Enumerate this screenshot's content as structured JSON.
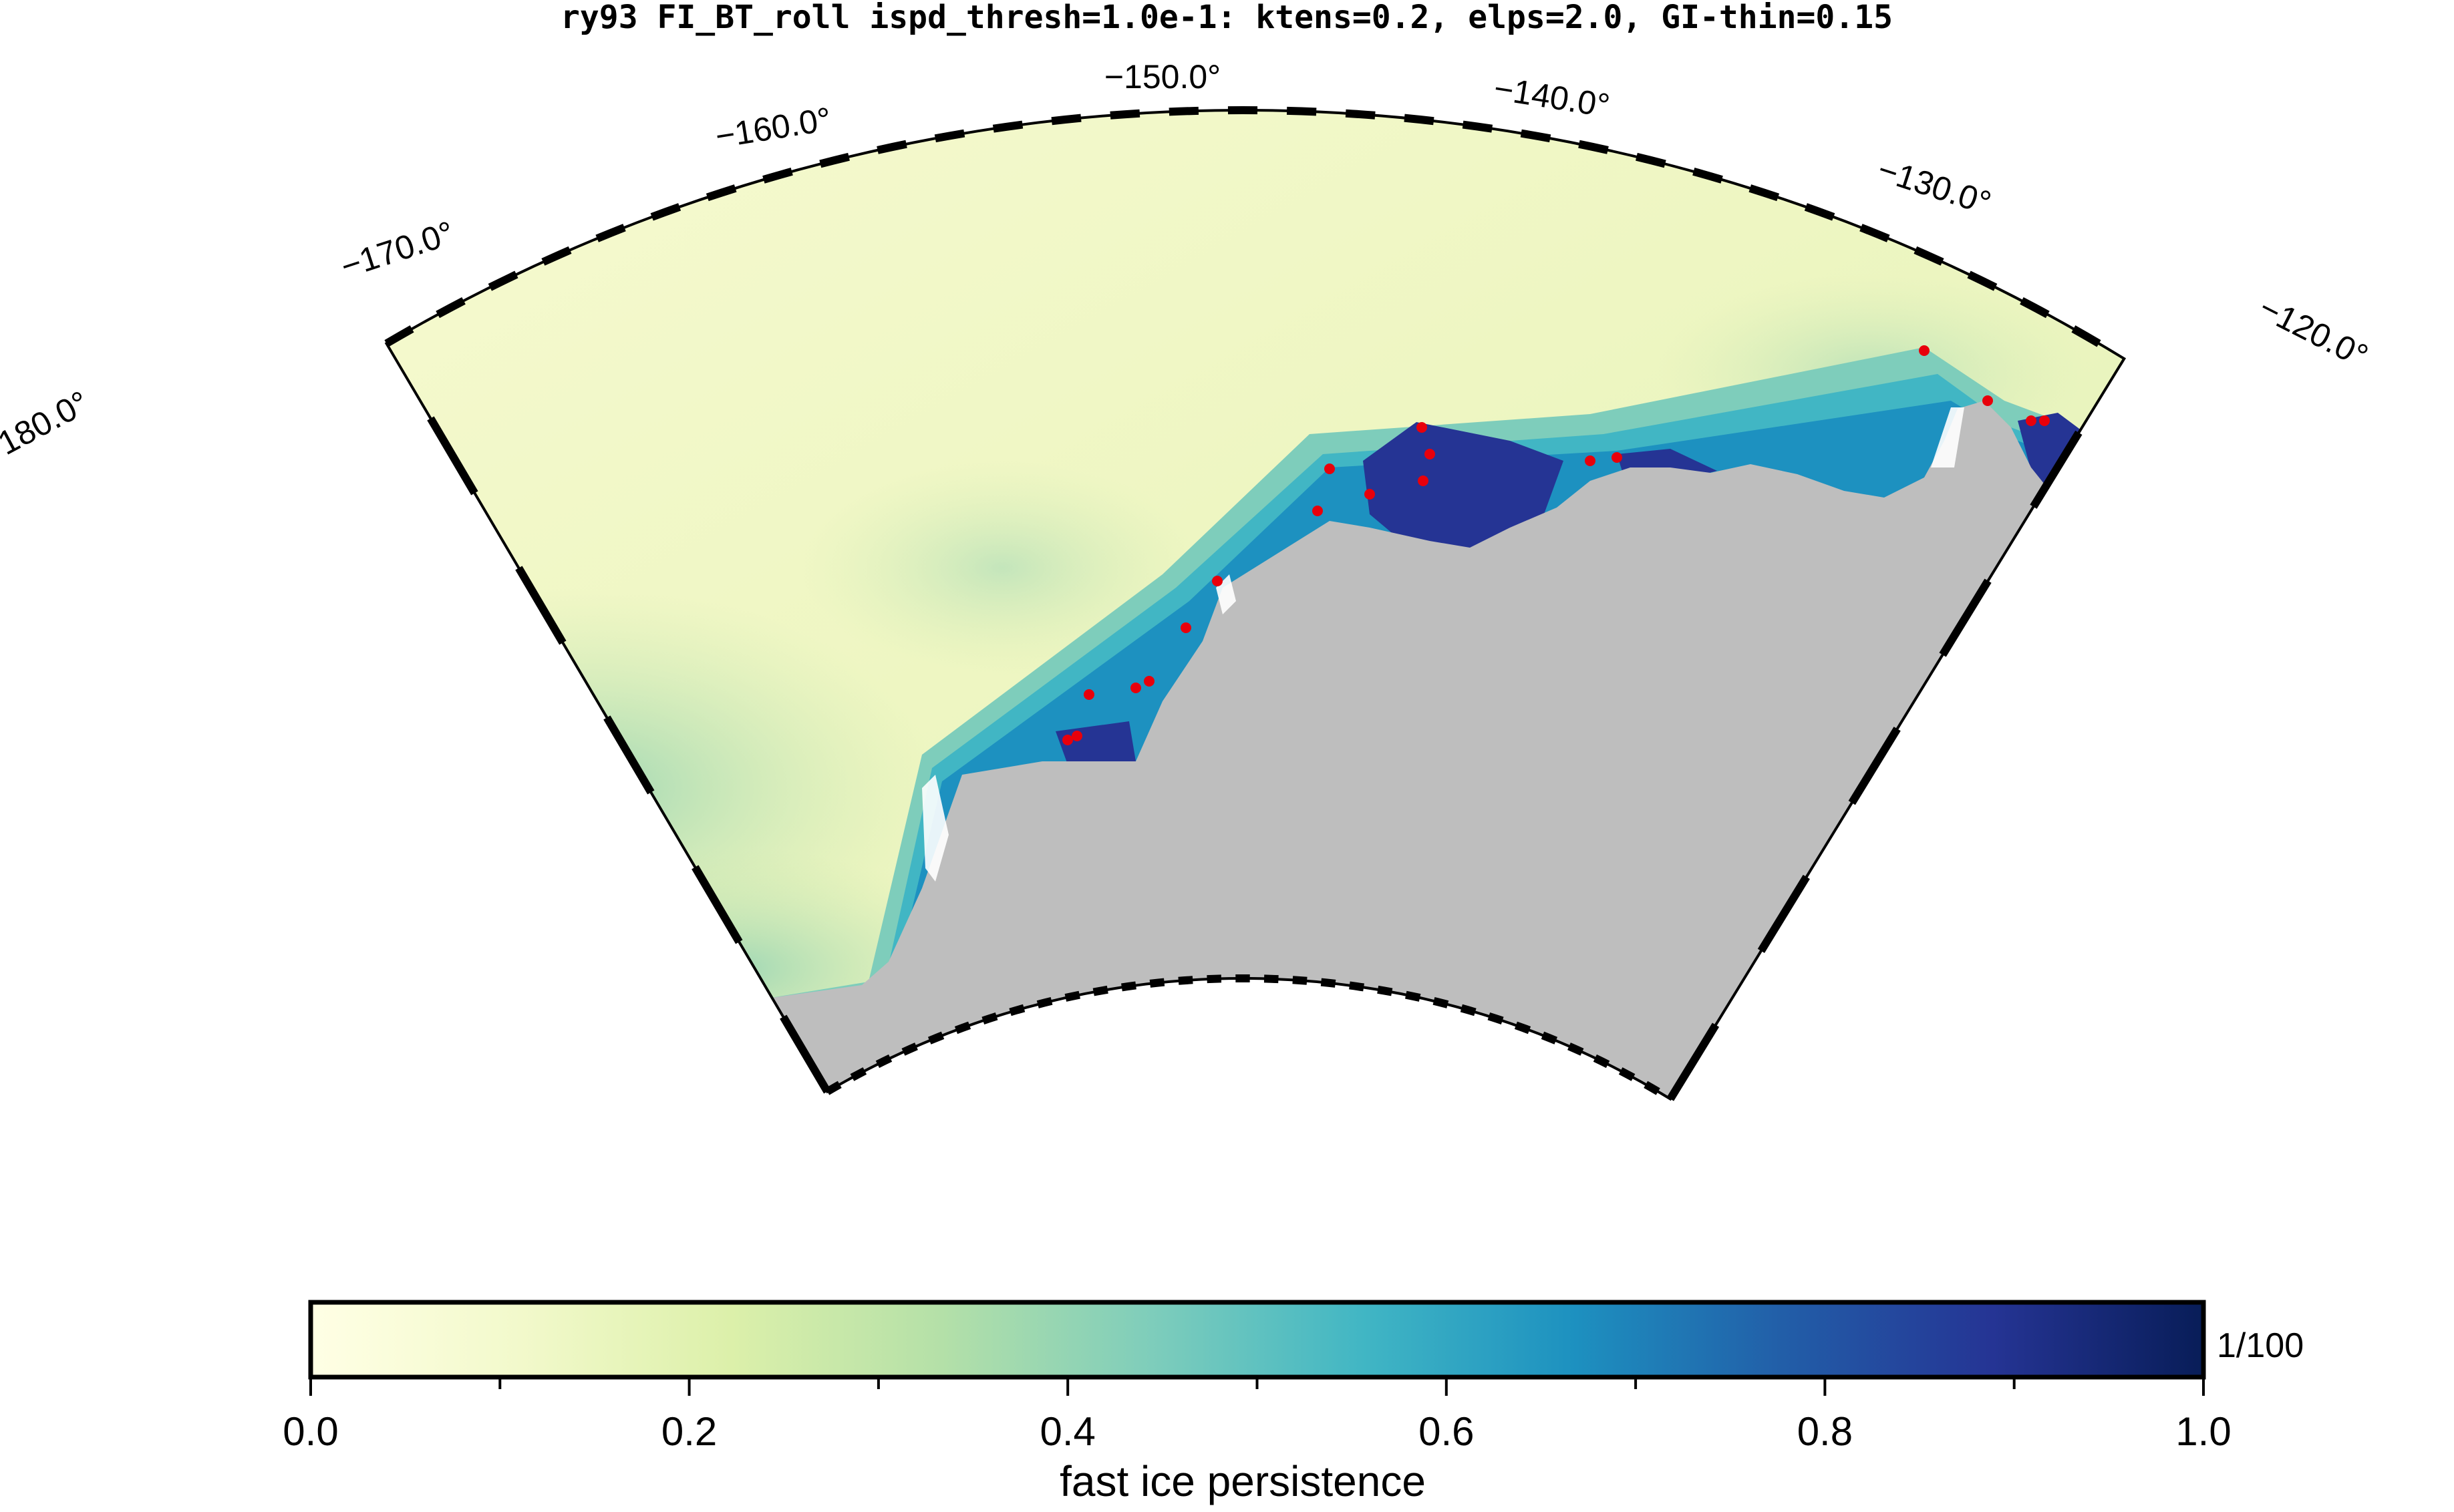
{
  "title": "ry93 FI_BT_roll ispd_thresh=1.0e-1: ktens=0.2, elps=2.0, GI-thin=0.15",
  "map": {
    "longitude_labels": [
      "−180.0°",
      "−170.0°",
      "−160.0°",
      "−150.0°",
      "−140.0°",
      "−130.0°",
      "−120.0°"
    ],
    "longitudes": [
      -180,
      -170,
      -160,
      -150,
      -140,
      -130,
      -120
    ],
    "lon_range": [
      -180,
      -118
    ],
    "colors": {
      "land": "#bebebe",
      "open_ocean": "#f3f8c8",
      "fast_ice_high": "#1b2f7c",
      "grounded_iceberg_marker": "#e8000b"
    }
  },
  "colorbar": {
    "label": "fast ice persistence",
    "annotation": "1/100",
    "range": [
      0.0,
      1.0
    ],
    "tick_labels": [
      "0.0",
      "0.2",
      "0.4",
      "0.6",
      "0.8",
      "1.0"
    ],
    "tick_values": [
      0.0,
      0.2,
      0.4,
      0.6,
      0.8,
      1.0
    ],
    "colormap": [
      "#ffffe5",
      "#f2f9cb",
      "#dcf0aa",
      "#b4e0a8",
      "#7ecdbb",
      "#41b6c4",
      "#1d91c0",
      "#225ea8",
      "#253494",
      "#081d58"
    ]
  }
}
